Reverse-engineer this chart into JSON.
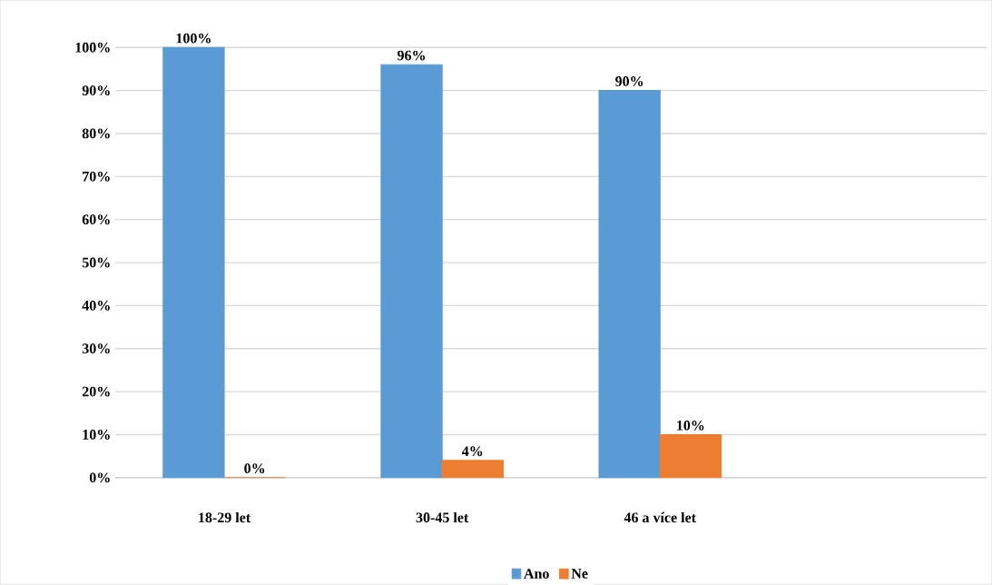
{
  "chart_data": {
    "type": "bar",
    "categories": [
      "18-29 let",
      "30-45 let",
      "46 a více let"
    ],
    "series": [
      {
        "name": "Ano",
        "color": "#5b9bd5",
        "values": [
          100,
          96,
          90
        ],
        "value_labels": [
          "100%",
          "96%",
          "90%"
        ]
      },
      {
        "name": "Ne",
        "color": "#ed7d31",
        "values": [
          0,
          4,
          10
        ],
        "value_labels": [
          "0%",
          "4%",
          "10%"
        ]
      }
    ],
    "ylim": [
      0,
      100
    ],
    "yticks": [
      {
        "value": 0,
        "label": "0%"
      },
      {
        "value": 10,
        "label": "10%"
      },
      {
        "value": 20,
        "label": "20%"
      },
      {
        "value": 30,
        "label": "30%"
      },
      {
        "value": 40,
        "label": "40%"
      },
      {
        "value": 50,
        "label": "50%"
      },
      {
        "value": 60,
        "label": "60%"
      },
      {
        "value": 70,
        "label": "70%"
      },
      {
        "value": 80,
        "label": "80%"
      },
      {
        "value": 90,
        "label": "90%"
      },
      {
        "value": 100,
        "label": "100%"
      }
    ],
    "grid": "y",
    "legend": "bottom"
  }
}
